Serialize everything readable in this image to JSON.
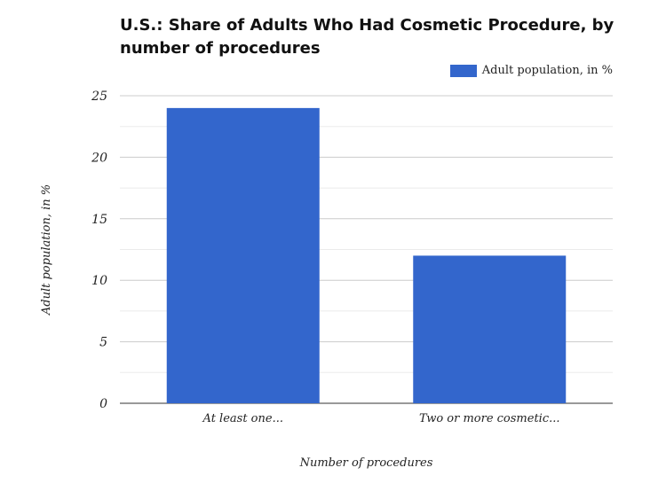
{
  "chart_data": {
    "type": "bar",
    "title": "U.S.: Share of Adults Who Had Cosmetic Procedure, by number of procedures",
    "xlabel": "Number of procedures",
    "ylabel": "Adult population, in %",
    "categories": [
      "At least one...",
      "Two or more cosmetic..."
    ],
    "series": [
      {
        "name": "Adult population, in %",
        "values": [
          24,
          12
        ],
        "color": "#3366cc"
      }
    ],
    "ylim": [
      0,
      25
    ],
    "yticks": [
      0,
      5,
      10,
      15,
      20,
      25
    ],
    "grid": true,
    "legend": "top-right"
  }
}
